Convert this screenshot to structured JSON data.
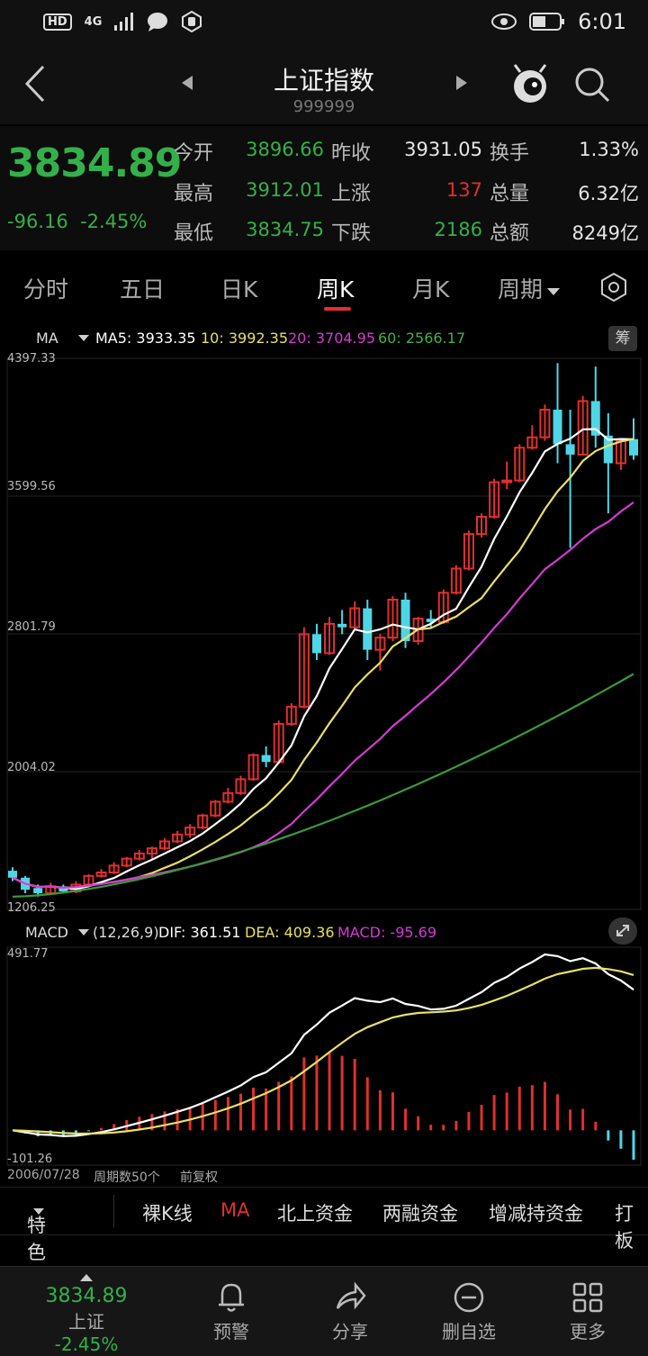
{
  "status": {
    "badge": "HD",
    "signal": "4G",
    "time": "6:01"
  },
  "header": {
    "title": "上证指数",
    "code": "999999"
  },
  "quote": {
    "price": "3834.89",
    "change": "-96.16",
    "change_pct": "-2.45%",
    "rows": [
      {
        "l1": "今开",
        "v1": "3896.66",
        "l2": "昨收",
        "v2": "3931.05",
        "l3": "换手",
        "v3": "1.33%"
      },
      {
        "l1": "最高",
        "v1": "3912.01",
        "l2": "上涨",
        "v2": "137",
        "l3": "总量",
        "v3": "6.32亿"
      },
      {
        "l1": "最低",
        "v1": "3834.75",
        "l2": "下跌",
        "v2": "2186",
        "l3": "总额",
        "v3": "8249亿"
      }
    ]
  },
  "tabs": [
    "分时",
    "五日",
    "日K",
    "周K",
    "月K",
    "周期"
  ],
  "ma": {
    "label": "MA",
    "ma5": "MA5: 3933.35",
    "ma10": "10: 3992.35",
    "ma20": "20: 3704.95",
    "ma60": "60: 2566.17",
    "chip": "筹"
  },
  "axis": {
    "y1": "4397.33",
    "y2": "3599.56",
    "y3": "2801.79",
    "y4": "2004.02",
    "y5": "1206.25",
    "m1": "491.77",
    "m2": "-101.26"
  },
  "macd": {
    "label": "MACD",
    "params": "(12,26,9)",
    "dif": "DIF: 361.51",
    "dea": "DEA: 409.36",
    "macd": "MACD: -95.69"
  },
  "footer": {
    "date": "2006/07/28",
    "count": "周期数50个",
    "adjust": "前复权"
  },
  "indicators": [
    "特色",
    "裸K线",
    "MA",
    "北上资金",
    "两融资金",
    "增减持资金",
    "打板"
  ],
  "nav": {
    "price": "3834.89",
    "name": "上证",
    "pct": "-2.45%",
    "items": [
      "预警",
      "分享",
      "删自选",
      "更多"
    ]
  },
  "colors": {
    "up": "#e0302e",
    "down": "#4fd6e6",
    "fall_text": "#34b04b",
    "ma5": "#ffffff",
    "ma10": "#e8e067",
    "ma20": "#d63ad6",
    "ma60": "#3a9a3a"
  },
  "chart_data": {
    "type": "candlestick",
    "ylim": [
      1206.25,
      4397.33
    ],
    "candles": [
      [
        1430,
        1390,
        1450,
        1370
      ],
      [
        1390,
        1320,
        1400,
        1300
      ],
      [
        1330,
        1300,
        1350,
        1280
      ],
      [
        1300,
        1340,
        1360,
        1290
      ],
      [
        1340,
        1310,
        1350,
        1300
      ],
      [
        1310,
        1350,
        1370,
        1300
      ],
      [
        1350,
        1400,
        1410,
        1340
      ],
      [
        1400,
        1420,
        1440,
        1390
      ],
      [
        1420,
        1460,
        1480,
        1410
      ],
      [
        1460,
        1500,
        1510,
        1450
      ],
      [
        1500,
        1530,
        1550,
        1490
      ],
      [
        1530,
        1560,
        1570,
        1500
      ],
      [
        1560,
        1600,
        1620,
        1550
      ],
      [
        1600,
        1640,
        1660,
        1590
      ],
      [
        1640,
        1680,
        1700,
        1620
      ],
      [
        1680,
        1750,
        1760,
        1670
      ],
      [
        1750,
        1830,
        1840,
        1740
      ],
      [
        1830,
        1880,
        1910,
        1820
      ],
      [
        1880,
        1960,
        1980,
        1870
      ],
      [
        1960,
        2100,
        2110,
        1950
      ],
      [
        2100,
        2060,
        2150,
        2030
      ],
      [
        2060,
        2280,
        2300,
        2050
      ],
      [
        2280,
        2380,
        2400,
        2270
      ],
      [
        2380,
        2800,
        2840,
        2370
      ],
      [
        2800,
        2690,
        2860,
        2650
      ],
      [
        2690,
        2860,
        2900,
        2680
      ],
      [
        2860,
        2840,
        2940,
        2800
      ],
      [
        2840,
        2950,
        2990,
        2830
      ],
      [
        2950,
        2710,
        3000,
        2650
      ],
      [
        2710,
        2780,
        2800,
        2590
      ],
      [
        2780,
        3000,
        3020,
        2760
      ],
      [
        3000,
        2760,
        3040,
        2720
      ],
      [
        2760,
        2890,
        2900,
        2740
      ],
      [
        2890,
        2870,
        2940,
        2840
      ],
      [
        2870,
        3040,
        3060,
        2860
      ],
      [
        3040,
        3180,
        3200,
        3030
      ],
      [
        3180,
        3380,
        3400,
        3170
      ],
      [
        3380,
        3480,
        3500,
        3360
      ],
      [
        3480,
        3680,
        3700,
        3470
      ],
      [
        3680,
        3690,
        3800,
        3640
      ],
      [
        3690,
        3880,
        3900,
        3680
      ],
      [
        3880,
        3940,
        4010,
        3870
      ],
      [
        3940,
        4100,
        4130,
        3920
      ],
      [
        4100,
        3900,
        4370,
        3790
      ],
      [
        3900,
        3840,
        4100,
        3300
      ],
      [
        3840,
        4150,
        4180,
        3840
      ],
      [
        4150,
        3950,
        4350,
        3880
      ],
      [
        3950,
        3790,
        4080,
        3500
      ],
      [
        3790,
        3920,
        3930,
        3750
      ],
      [
        3930,
        3835,
        4050,
        3810
      ]
    ]
  }
}
